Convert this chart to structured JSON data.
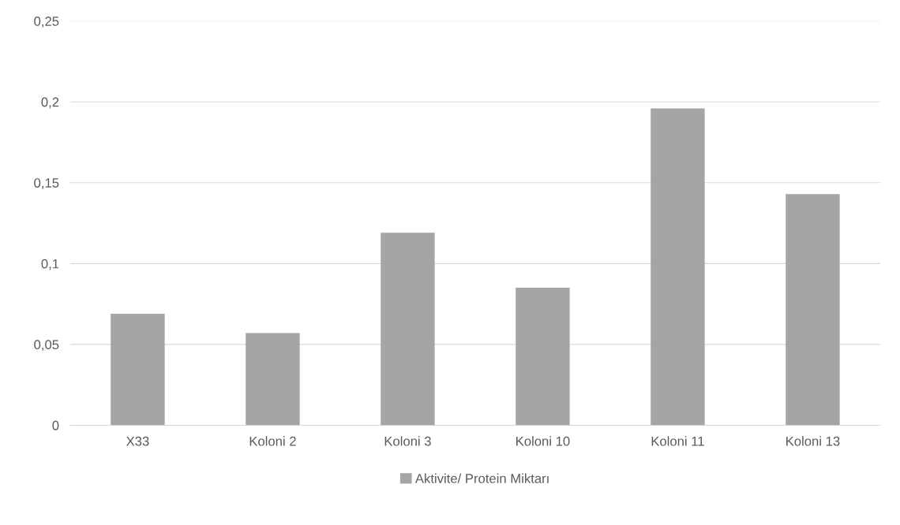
{
  "chart_data": {
    "type": "bar",
    "categories": [
      "X33",
      "Koloni 2",
      "Koloni 3",
      "Koloni 10",
      "Koloni 11",
      "Koloni 13"
    ],
    "series": [
      {
        "name": "Aktivite/ Protein Miktarı",
        "color": "#a5a5a5",
        "values": [
          0.069,
          0.057,
          0.119,
          0.085,
          0.196,
          0.143
        ]
      }
    ],
    "ylim": [
      0,
      0.25
    ],
    "yticks": [
      0,
      {
        "value": 0.05,
        "label": "0,05"
      },
      {
        "value": 0.1,
        "label": "0,1"
      },
      {
        "value": 0.15,
        "label": "0,15"
      },
      {
        "value": 0.2,
        "label": "0,2"
      },
      {
        "value": 0.25,
        "label": "0,25"
      }
    ],
    "grid": "y",
    "legend": "bottom"
  }
}
